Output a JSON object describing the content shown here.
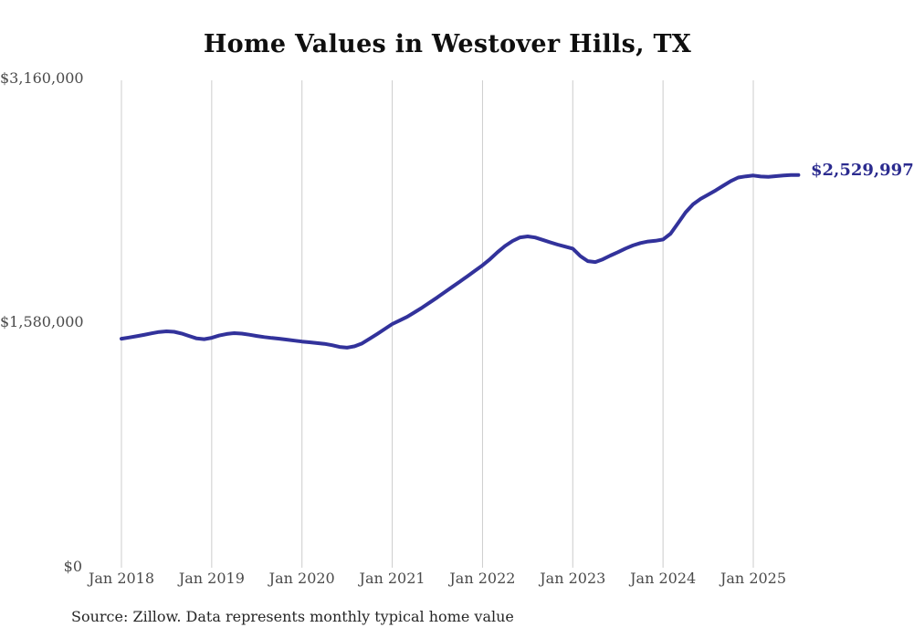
{
  "chart_data": {
    "type": "line",
    "title": "Home Values in Westover Hills, TX",
    "source": "Source: Zillow. Data represents monthly typical home value",
    "series_name": "Monthly typical home value",
    "x_start": "2018-01",
    "x_end": "2025-07",
    "x_cadence": "monthly",
    "x_tick_labels": [
      "Jan 2018",
      "Jan 2019",
      "Jan 2020",
      "Jan 2021",
      "Jan 2022",
      "Jan 2023",
      "Jan 2024",
      "Jan 2025"
    ],
    "y_tick_labels": [
      "$0",
      "$1,580,000",
      "$3,160,000"
    ],
    "y_ticks": [
      0,
      1580000,
      3160000
    ],
    "ylim": [
      0,
      3160000
    ],
    "grid": "vertical-gridlines-only",
    "legend": "none",
    "line_color": "#32329b",
    "grid_color": "#cccccc",
    "end_value": 2529997,
    "end_value_label": "$2,529,997",
    "values": [
      1470000,
      1478000,
      1486000,
      1495000,
      1505000,
      1514000,
      1518000,
      1515000,
      1504000,
      1488000,
      1472000,
      1467000,
      1476000,
      1491000,
      1501000,
      1506000,
      1503000,
      1496000,
      1488000,
      1481000,
      1475000,
      1470000,
      1464000,
      1458000,
      1452000,
      1447000,
      1442000,
      1437000,
      1428000,
      1417000,
      1412000,
      1421000,
      1440000,
      1470000,
      1501000,
      1533000,
      1565000,
      1588000,
      1612000,
      1642000,
      1672000,
      1705000,
      1738000,
      1772000,
      1806000,
      1840000,
      1875000,
      1910000,
      1945000,
      1985000,
      2030000,
      2070000,
      2103000,
      2126000,
      2132000,
      2125000,
      2110000,
      2094000,
      2079000,
      2066000,
      2053000,
      2005000,
      1972000,
      1966000,
      1984000,
      2008000,
      2030000,
      2054000,
      2074000,
      2089000,
      2099000,
      2104000,
      2112000,
      2150000,
      2218000,
      2288000,
      2340000,
      2375000,
      2402000,
      2430000,
      2460000,
      2490000,
      2513000,
      2521000,
      2526000,
      2520000,
      2518000,
      2522000,
      2526000,
      2529000,
      2529997
    ]
  }
}
